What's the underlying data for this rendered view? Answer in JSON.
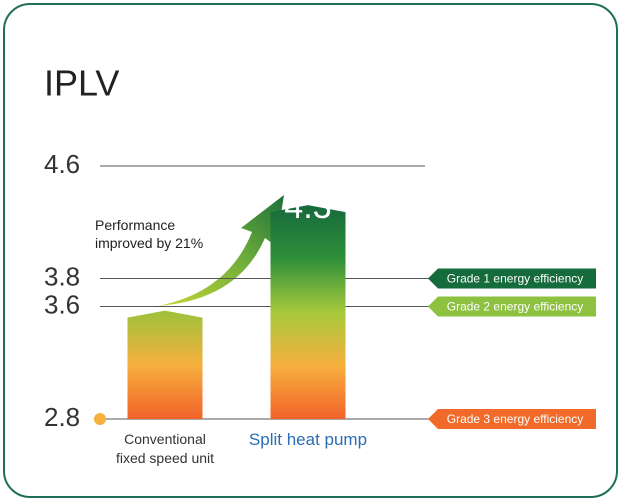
{
  "chart_data": {
    "type": "bar",
    "title": "IPLV",
    "categories": [
      "Conventional\nfixed speed unit",
      "Split heat pump"
    ],
    "category_colors": [
      "#333333",
      "#2a6db5"
    ],
    "values": [
      3.55,
      4.3
    ],
    "bar_colors": [
      [
        "#9cc23c",
        "#f6b03d",
        "#f2622a"
      ],
      [
        "#166a3c",
        "#2f8f3a",
        "#a6c93c",
        "#f6b03d",
        "#f2622a"
      ]
    ],
    "ylim": [
      2.8,
      4.6
    ],
    "yticks": [
      4.6,
      3.8,
      3.6,
      2.8
    ],
    "annotation": "Performance\nimproved by 21%",
    "grades": [
      {
        "label": "Grade 1 energy efficiency",
        "value": 3.8,
        "color": "#156b3b"
      },
      {
        "label": "Grade 2 energy efficiency",
        "value": 3.6,
        "color": "#8dc13f"
      },
      {
        "label": "Grade 3 energy efficiency",
        "value": 2.8,
        "color": "#f26a2a"
      }
    ]
  }
}
